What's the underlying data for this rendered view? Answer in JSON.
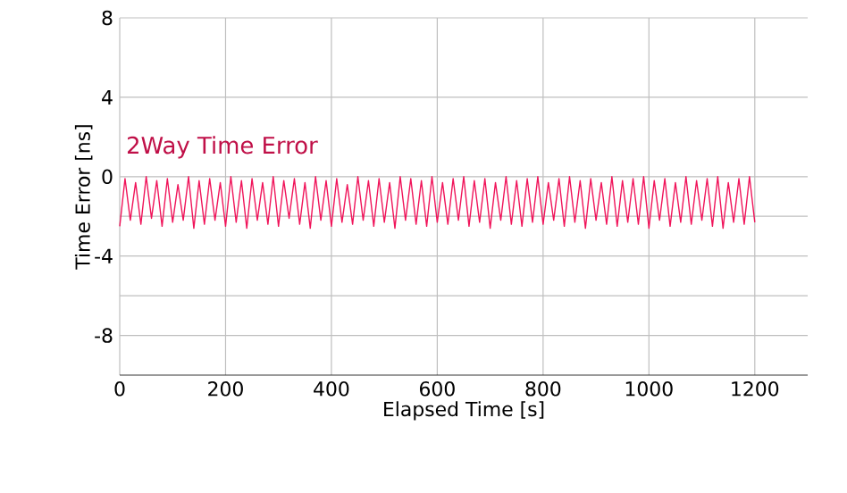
{
  "chart_data": {
    "type": "line",
    "xlabel": "Elapsed Time [s]",
    "ylabel": "Time Error [ns]",
    "xlim": [
      0,
      1300
    ],
    "xticks": [
      0,
      200,
      400,
      600,
      800,
      1000,
      1200
    ],
    "ylim": [
      -10,
      8
    ],
    "yticks": [
      -8,
      {
        "value": -6,
        "label": null
      },
      -4,
      {
        "value": -2,
        "label": null
      },
      0,
      4,
      8
    ],
    "grid": true,
    "legend": false,
    "marker": "none",
    "line_style": "solid",
    "x": [
      0,
      10,
      20,
      30,
      40,
      50,
      60,
      70,
      80,
      90,
      100,
      110,
      120,
      130,
      140,
      150,
      160,
      170,
      180,
      190,
      200,
      210,
      220,
      230,
      240,
      250,
      260,
      270,
      280,
      290,
      300,
      310,
      320,
      330,
      340,
      350,
      360,
      370,
      380,
      390,
      400,
      410,
      420,
      430,
      440,
      450,
      460,
      470,
      480,
      490,
      500,
      510,
      520,
      530,
      540,
      550,
      560,
      570,
      580,
      590,
      600,
      610,
      620,
      630,
      640,
      650,
      660,
      670,
      680,
      690,
      700,
      710,
      720,
      730,
      740,
      750,
      760,
      770,
      780,
      790,
      800,
      810,
      820,
      830,
      840,
      850,
      860,
      870,
      880,
      890,
      900,
      910,
      920,
      930,
      940,
      950,
      960,
      970,
      980,
      990,
      1000,
      1010,
      1020,
      1030,
      1040,
      1050,
      1060,
      1070,
      1080,
      1090,
      1100,
      1110,
      1120,
      1130,
      1140,
      1150,
      1160,
      1170,
      1180,
      1190,
      1200
    ],
    "series": [
      {
        "name": "2Way Time Error",
        "color": "#f0145a",
        "values": [
          -2.5,
          -0.1,
          -2.2,
          -0.3,
          -2.4,
          0,
          -2.1,
          -0.2,
          -2.5,
          -0.1,
          -2.3,
          -0.4,
          -2.2,
          0,
          -2.6,
          -0.2,
          -2.4,
          -0.1,
          -2.2,
          -0.3,
          -2.5,
          0,
          -2.3,
          -0.2,
          -2.6,
          -0.1,
          -2.2,
          -0.3,
          -2.4,
          0,
          -2.5,
          -0.2,
          -2.1,
          -0.1,
          -2.4,
          -0.3,
          -2.6,
          0,
          -2.2,
          -0.2,
          -2.5,
          -0.1,
          -2.3,
          -0.4,
          -2.4,
          0,
          -2.2,
          -0.2,
          -2.5,
          -0.1,
          -2.3,
          -0.3,
          -2.6,
          0,
          -2.2,
          -0.1,
          -2.4,
          -0.2,
          -2.5,
          0,
          -2.3,
          -0.3,
          -2.4,
          -0.1,
          -2.2,
          0,
          -2.5,
          -0.2,
          -2.3,
          -0.1,
          -2.6,
          -0.3,
          -2.2,
          0,
          -2.4,
          -0.2,
          -2.5,
          -0.1,
          -2.3,
          0,
          -2.4,
          -0.3,
          -2.2,
          -0.1,
          -2.5,
          0,
          -2.3,
          -0.2,
          -2.6,
          -0.1,
          -2.2,
          -0.3,
          -2.4,
          0,
          -2.5,
          -0.2,
          -2.3,
          -0.1,
          -2.4,
          0,
          -2.6,
          -0.2,
          -2.2,
          -0.1,
          -2.5,
          -0.3,
          -2.3,
          0,
          -2.4,
          -0.2,
          -2.2,
          -0.1,
          -2.5,
          0,
          -2.6,
          -0.3,
          -2.3,
          -0.1,
          -2.4,
          0,
          -2.3
        ]
      }
    ]
  }
}
